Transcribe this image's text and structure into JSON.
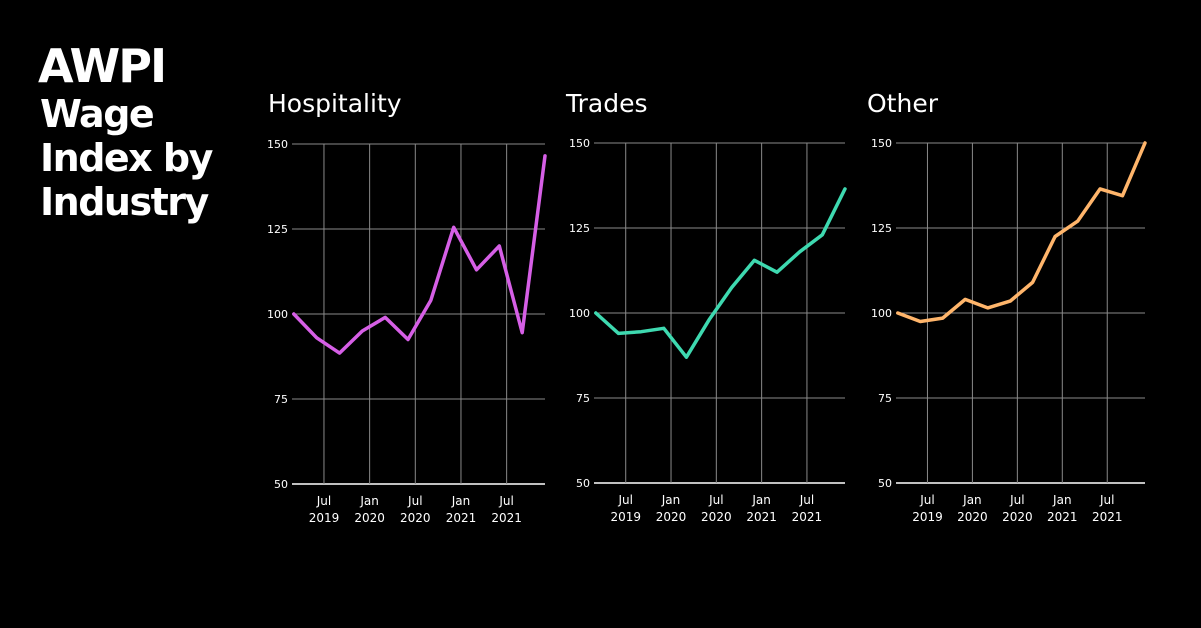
{
  "brand": {
    "logo_text": "AWPI"
  },
  "page_title": "Wage\nIndex by\nIndustry",
  "chart_data": [
    {
      "type": "line",
      "title": "Hospitality",
      "color": "#d65fe6",
      "ylim": [
        50,
        150
      ],
      "yticks": [
        50,
        75,
        100,
        125,
        150
      ],
      "xticks": [
        {
          "t": 2019.5,
          "line1": "Jul",
          "line2": "2019"
        },
        {
          "t": 2020.0,
          "line1": "Jan",
          "line2": "2020"
        },
        {
          "t": 2020.5,
          "line1": "Jul",
          "line2": "2020"
        },
        {
          "t": 2021.0,
          "line1": "Jan",
          "line2": "2021"
        },
        {
          "t": 2021.5,
          "line1": "Jul",
          "line2": "2021"
        }
      ],
      "xlim": [
        2019.15,
        2021.92
      ],
      "x": [
        2019.17,
        2019.42,
        2019.67,
        2019.92,
        2020.17,
        2020.42,
        2020.67,
        2020.92,
        2021.17,
        2021.42,
        2021.67,
        2021.92
      ],
      "values": [
        100,
        93,
        88.5,
        95,
        99,
        92.5,
        104,
        125.5,
        113,
        120,
        94.5,
        146.5
      ]
    },
    {
      "type": "line",
      "title": "Trades",
      "color": "#3ed9b0",
      "ylim": [
        50,
        150
      ],
      "yticks": [
        50,
        75,
        100,
        125,
        150
      ],
      "xticks": [
        {
          "t": 2019.5,
          "line1": "Jul",
          "line2": "2019"
        },
        {
          "t": 2020.0,
          "line1": "Jan",
          "line2": "2020"
        },
        {
          "t": 2020.5,
          "line1": "Jul",
          "line2": "2020"
        },
        {
          "t": 2021.0,
          "line1": "Jan",
          "line2": "2021"
        },
        {
          "t": 2021.5,
          "line1": "Jul",
          "line2": "2021"
        }
      ],
      "xlim": [
        2019.15,
        2021.92
      ],
      "x": [
        2019.17,
        2019.42,
        2019.67,
        2019.92,
        2020.17,
        2020.42,
        2020.67,
        2020.92,
        2021.17,
        2021.42,
        2021.67,
        2021.92
      ],
      "values": [
        100,
        94,
        94.5,
        95.5,
        87,
        98,
        107.5,
        115.5,
        112,
        118,
        123,
        136.5
      ]
    },
    {
      "type": "line",
      "title": "Other",
      "color": "#ffb56b",
      "ylim": [
        50,
        150
      ],
      "yticks": [
        50,
        75,
        100,
        125,
        150
      ],
      "xticks": [
        {
          "t": 2019.5,
          "line1": "Jul",
          "line2": "2019"
        },
        {
          "t": 2020.0,
          "line1": "Jan",
          "line2": "2020"
        },
        {
          "t": 2020.5,
          "line1": "Jul",
          "line2": "2020"
        },
        {
          "t": 2021.0,
          "line1": "Jan",
          "line2": "2021"
        },
        {
          "t": 2021.5,
          "line1": "Jul",
          "line2": "2021"
        }
      ],
      "xlim": [
        2019.15,
        2021.92
      ],
      "x": [
        2019.17,
        2019.42,
        2019.67,
        2019.92,
        2020.17,
        2020.42,
        2020.67,
        2020.92,
        2021.17,
        2021.42,
        2021.67,
        2021.92
      ],
      "values": [
        100,
        97.5,
        98.5,
        104,
        101.5,
        103.5,
        109,
        122.5,
        127,
        136.5,
        134.5,
        150
      ]
    }
  ]
}
